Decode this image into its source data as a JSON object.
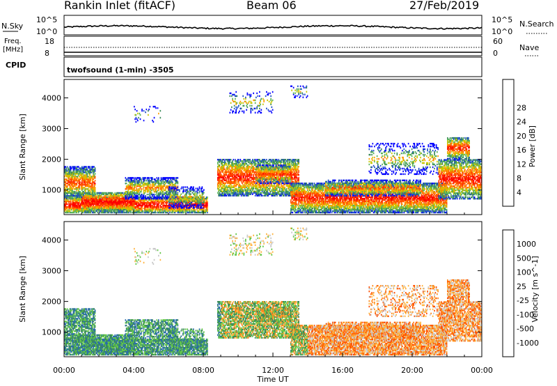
{
  "header": {
    "title": "Rankin Inlet (fitACF)",
    "beam": "Beam 06",
    "date": "27/Feb/2019"
  },
  "nsky_panel": {
    "left_label": "N.Sky",
    "right_label": "N.Search",
    "ticks_left": [
      "10^5",
      "10^0"
    ],
    "ticks_right": [
      "10^5",
      "10^0"
    ]
  },
  "freq_panel": {
    "left_label_1": "Freq.",
    "left_label_2": "[MHz]",
    "ticks_left": [
      "18",
      "8"
    ],
    "right_label": "Nave",
    "ticks_right": [
      "60",
      "0"
    ]
  },
  "cpid": {
    "label": "CPID",
    "value": "twofsound (1-min) -3505"
  },
  "colors": {
    "power_scale": [
      "#0000ff",
      "#2050c8",
      "#3c8c5a",
      "#5ab45a",
      "#c8c800",
      "#ffa000",
      "#ff6400",
      "#ff3c00",
      "#ff0000"
    ],
    "velocity_scale": [
      "#ff0000",
      "#ff5000",
      "#ff8a1e",
      "#ffb440",
      "#c8c8c8",
      "#64c84a",
      "#3c8c5a",
      "#2a6eaa",
      "#1e3cc8"
    ]
  },
  "chart_data": [
    {
      "type": "heatmap",
      "name": "power",
      "xlabel": "",
      "ylabel": "Slant Range [km]",
      "y_ticks": [
        "1000",
        "2000",
        "3000",
        "4000"
      ],
      "y_range": [
        200,
        4600
      ],
      "colorbar_label": "Power [dB]",
      "colorbar_ticks": [
        "4",
        "8",
        "12",
        "16",
        "20",
        "24",
        "28"
      ]
    },
    {
      "type": "heatmap",
      "name": "velocity",
      "xlabel": "Time UT",
      "ylabel": "Slant Range [km]",
      "x_ticks": [
        "00:00",
        "04:00",
        "08:00",
        "12:00",
        "16:00",
        "20:00",
        "00:00"
      ],
      "x_range_hours": [
        0,
        24
      ],
      "y_ticks": [
        "1000",
        "2000",
        "3000",
        "4000"
      ],
      "y_range": [
        200,
        4600
      ],
      "colorbar_label": "Velocity [m s^-1]",
      "colorbar_ticks": [
        "1000",
        "500",
        "100",
        "25",
        "-25",
        "-100",
        "-500",
        "-1000"
      ]
    }
  ]
}
